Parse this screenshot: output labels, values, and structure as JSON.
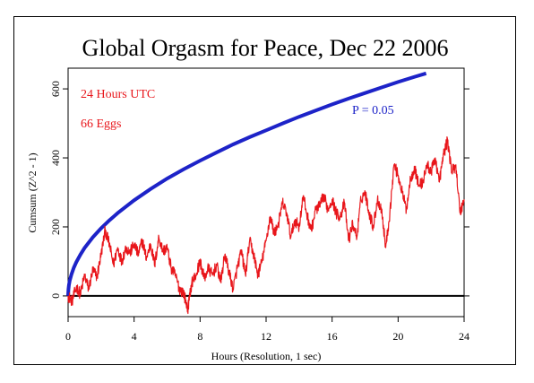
{
  "chart_data": {
    "type": "line",
    "title": "Global Orgasm for Peace, Dec 22 2006",
    "xlabel": "Hours (Resolution, 1 sec)",
    "ylabel": "Cumsum (Z^2 - 1)",
    "xlim": [
      0,
      24
    ],
    "ylim": [
      -60,
      660
    ],
    "x_ticks": [
      "0",
      "4",
      "8",
      "12",
      "16",
      "20",
      "24"
    ],
    "y_ticks": [
      "0",
      "200",
      "400",
      "600"
    ],
    "annotations": {
      "time_span": "24 Hours UTC",
      "eggs": "66 Eggs",
      "p_label": "P = 0.05"
    },
    "colors": {
      "cumsum": "#e8161b",
      "p_curve": "#1d23c8",
      "baseline": "#000000"
    },
    "series": [
      {
        "color": "#e8161b",
        "x": [
          0,
          0.25,
          0.5,
          0.75,
          1,
          1.25,
          1.5,
          1.75,
          2,
          2.25,
          2.5,
          2.75,
          3,
          3.25,
          3.5,
          3.75,
          4,
          4.25,
          4.5,
          4.75,
          5,
          5.25,
          5.5,
          5.75,
          6,
          6.25,
          6.5,
          6.75,
          7,
          7.25,
          7.5,
          7.75,
          8,
          8.25,
          8.5,
          8.75,
          9,
          9.25,
          9.5,
          9.75,
          10,
          10.25,
          10.5,
          10.75,
          11,
          11.25,
          11.5,
          11.75,
          12,
          12.25,
          12.5,
          12.75,
          13,
          13.25,
          13.5,
          13.75,
          14,
          14.25,
          14.5,
          14.75,
          15,
          15.25,
          15.5,
          15.75,
          16,
          16.25,
          16.5,
          16.75,
          17,
          17.25,
          17.5,
          17.75,
          18,
          18.25,
          18.5,
          18.75,
          19,
          19.25,
          19.5,
          19.75,
          20,
          20.25,
          20.5,
          20.75,
          21,
          21.25,
          21.5,
          21.75,
          22,
          22.25,
          22.5,
          22.75,
          23,
          23.25,
          23.5,
          23.75,
          24
        ],
        "values": [
          0,
          -15,
          25,
          5,
          60,
          20,
          75,
          55,
          120,
          190,
          150,
          90,
          140,
          100,
          140,
          125,
          150,
          120,
          160,
          110,
          150,
          90,
          170,
          130,
          140,
          80,
          60,
          20,
          10,
          -40,
          40,
          60,
          100,
          50,
          80,
          60,
          90,
          40,
          120,
          70,
          20,
          80,
          130,
          60,
          160,
          120,
          60,
          100,
          160,
          230,
          180,
          210,
          270,
          240,
          170,
          220,
          200,
          290,
          230,
          190,
          250,
          260,
          290,
          250,
          280,
          240,
          230,
          270,
          160,
          210,
          170,
          280,
          300,
          240,
          200,
          280,
          250,
          140,
          240,
          380,
          350,
          300,
          250,
          340,
          370,
          320,
          330,
          380,
          360,
          400,
          330,
          410,
          450,
          360,
          380,
          240,
          280
        ]
      },
      {
        "name": "P = 0.05",
        "color": "#1d23c8",
        "x": [
          0,
          0.02,
          0.05,
          0.1,
          0.2,
          0.35,
          0.5,
          0.75,
          1,
          1.5,
          2,
          2.5,
          3,
          4,
          5,
          6,
          7,
          8,
          9,
          10,
          11,
          12,
          13,
          14,
          15,
          16,
          17,
          18,
          19,
          20,
          21,
          21.7
        ],
        "values": [
          0,
          19,
          31,
          44,
          62,
          82,
          98,
          120,
          139,
          170,
          196,
          219,
          240,
          277,
          310,
          340,
          367,
          392,
          416,
          439,
          460,
          480,
          500,
          519,
          537,
          555,
          572,
          588,
          604,
          620,
          635,
          645
        ]
      }
    ]
  }
}
